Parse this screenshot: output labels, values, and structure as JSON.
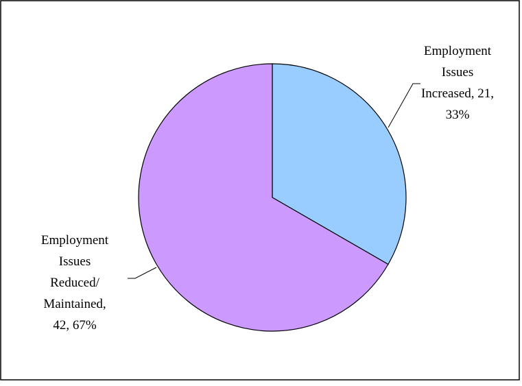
{
  "chart_data": {
    "type": "pie",
    "title": "",
    "slices": [
      {
        "label_lines": [
          "Employment",
          "Issues",
          "Increased, 21,",
          "33%"
        ],
        "value": 21,
        "percent": 33,
        "color": "#99ccff"
      },
      {
        "label_lines": [
          "Employment",
          "Issues",
          "Reduced/",
          "Maintained,",
          "42, 67%"
        ],
        "value": 42,
        "percent": 67,
        "color": "#cc99ff"
      }
    ],
    "start_angle": "12 o'clock",
    "direction": "clockwise",
    "legend": "none"
  }
}
